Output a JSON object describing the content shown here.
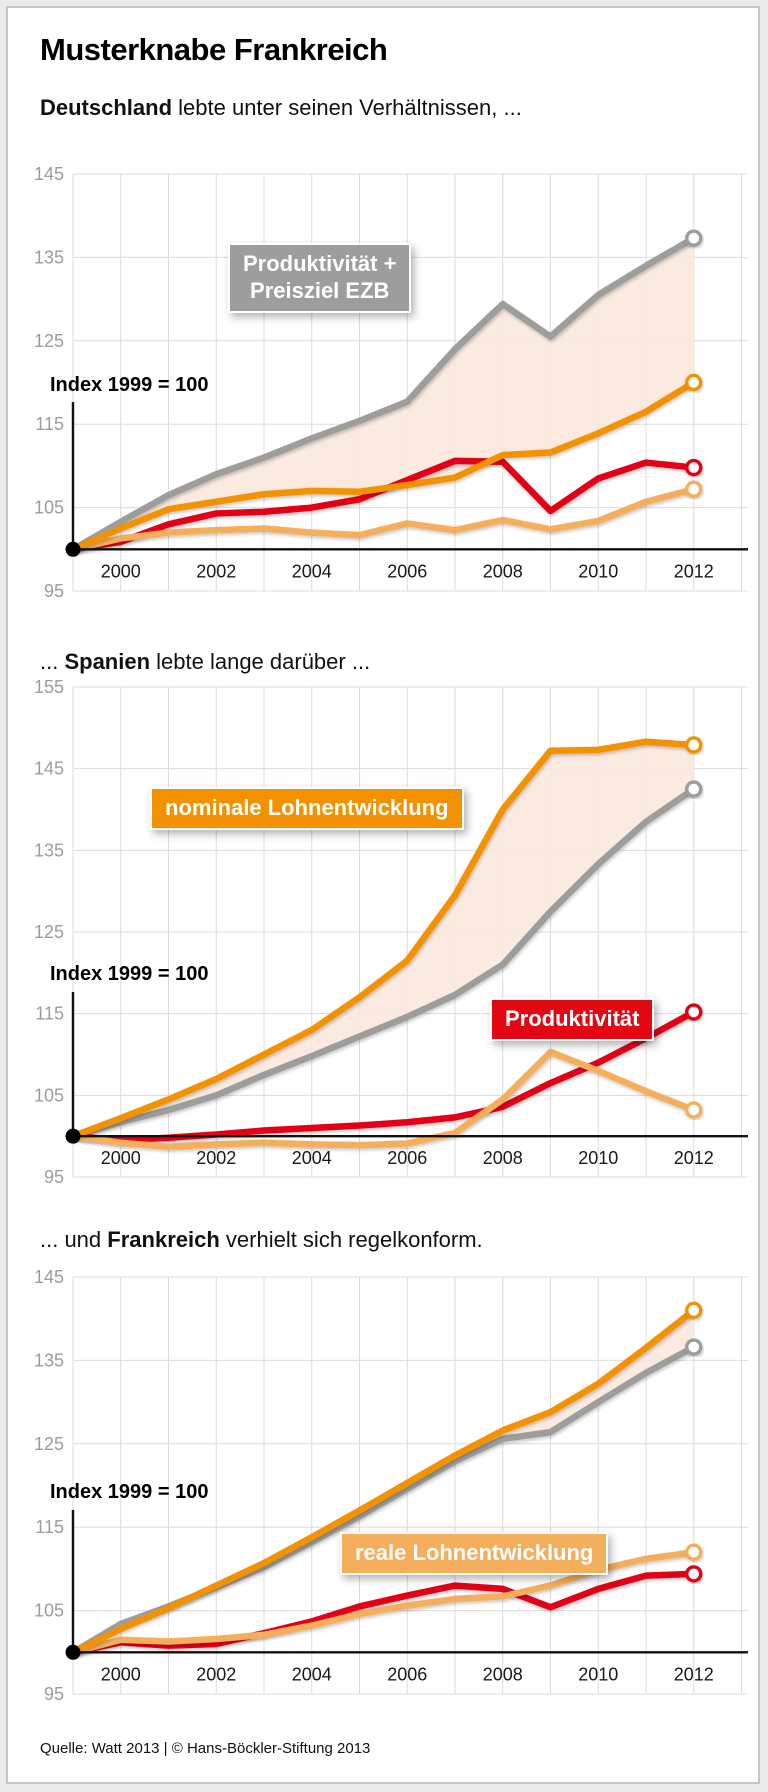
{
  "page": {
    "title": "Musterknabe Frankreich",
    "source_line": "Quelle: Watt 2013 | © Hans-Böckler-Stiftung 2013"
  },
  "colors": {
    "orange": "#f39200",
    "light_orange": "#f5ae5b",
    "red": "#e30613",
    "gray": "#9d9d9c",
    "band_fill": "#f9e8dc",
    "grid": "#dcdcdc",
    "ytick_label": "#9c9c9c",
    "xtick_label": "#1a1a1a",
    "axis": "#111111"
  },
  "chart_data": [
    {
      "type": "line",
      "country": "Deutschland",
      "title_parts": {
        "pre": "",
        "bold": "Deutschland",
        "post": " lebte unter seinen Verhältnissen, ..."
      },
      "axis_note": "Index 1999 = 100",
      "x": [
        1999,
        2000,
        2001,
        2002,
        2003,
        2004,
        2005,
        2006,
        2007,
        2008,
        2009,
        2010,
        2011,
        2012
      ],
      "xticks": [
        2000,
        2002,
        2004,
        2006,
        2008,
        2010,
        2012
      ],
      "yticks": [
        145,
        135,
        125,
        115,
        105,
        95
      ],
      "ylim": [
        95,
        145
      ],
      "baseline": 100,
      "grid": true,
      "label_boxes": [
        {
          "lines": [
            "Produktivität +",
            "Preisziel EZB"
          ],
          "color": "gray"
        }
      ],
      "band": {
        "upper": "Produktivität + Preisziel EZB",
        "lower": "nominale Lohnentwicklung"
      },
      "series": [
        {
          "name": "Produktivität + Preisziel EZB",
          "color": "gray",
          "values": [
            100,
            103.3,
            106.5,
            109,
            111,
            113.3,
            115.4,
            117.7,
            124,
            129.4,
            125.5,
            130.5,
            134,
            137.3
          ]
        },
        {
          "name": "Produktivität",
          "color": "red",
          "values": [
            100,
            100.9,
            103,
            104.3,
            104.5,
            105,
            106,
            108.3,
            110.6,
            110.5,
            104.6,
            108.5,
            110.4,
            109.8
          ]
        },
        {
          "name": "reale Lohnentwicklung",
          "color": "light_orange",
          "values": [
            100,
            101.3,
            102,
            102.3,
            102.5,
            102,
            101.7,
            103.1,
            102.3,
            103.5,
            102.4,
            103.4,
            105.7,
            107.2
          ]
        },
        {
          "name": "nominale Lohnentwicklung",
          "color": "orange",
          "values": [
            100,
            102.5,
            104.8,
            105.7,
            106.6,
            107,
            106.9,
            107.7,
            108.6,
            111.3,
            111.6,
            113.9,
            116.5,
            120
          ]
        }
      ]
    },
    {
      "type": "line",
      "country": "Spanien",
      "title_parts": {
        "pre": "... ",
        "bold": "Spanien",
        "post": " lebte lange darüber ..."
      },
      "axis_note": "Index 1999 = 100",
      "x": [
        1999,
        2000,
        2001,
        2002,
        2003,
        2004,
        2005,
        2006,
        2007,
        2008,
        2009,
        2010,
        2011,
        2012
      ],
      "xticks": [
        2000,
        2002,
        2004,
        2006,
        2008,
        2010,
        2012
      ],
      "yticks": [
        155,
        145,
        135,
        125,
        115,
        105,
        95
      ],
      "ylim": [
        95,
        155
      ],
      "baseline": 100,
      "grid": true,
      "label_boxes": [
        {
          "lines": [
            "nominale Lohnentwicklung"
          ],
          "color": "orange"
        },
        {
          "lines": [
            "Produktivität"
          ],
          "color": "red"
        }
      ],
      "band": {
        "upper": "nominale Lohnentwicklung",
        "lower": "Produktivität + Preisziel EZB"
      },
      "series": [
        {
          "name": "Produktivität + Preisziel EZB",
          "color": "gray",
          "values": [
            100,
            101.7,
            103.2,
            105,
            107.5,
            109.8,
            112.2,
            114.6,
            117.3,
            121,
            127.5,
            133.3,
            138.5,
            142.5
          ]
        },
        {
          "name": "Produktivität",
          "color": "red",
          "values": [
            100,
            99.5,
            99.8,
            100.2,
            100.7,
            101,
            101.3,
            101.7,
            102.3,
            103.6,
            106.5,
            109,
            112,
            115.2
          ]
        },
        {
          "name": "reale Lohnentwicklung",
          "color": "light_orange",
          "values": [
            100,
            99.2,
            98.7,
            99,
            99.2,
            99,
            98.9,
            99.1,
            100.4,
            104.5,
            110.3,
            108,
            105.5,
            103.2
          ]
        },
        {
          "name": "nominale Lohnentwicklung",
          "color": "orange",
          "values": [
            100,
            102.2,
            104.5,
            107,
            110,
            113,
            117,
            121.5,
            129.5,
            140,
            147.2,
            147.3,
            148.3,
            147.9
          ]
        }
      ]
    },
    {
      "type": "line",
      "country": "Frankreich",
      "title_parts": {
        "pre": "... und ",
        "bold": "Frankreich",
        "post": " verhielt sich regelkonform."
      },
      "axis_note": "Index 1999 = 100",
      "x": [
        1999,
        2000,
        2001,
        2002,
        2003,
        2004,
        2005,
        2006,
        2007,
        2008,
        2009,
        2010,
        2011,
        2012
      ],
      "xticks": [
        2000,
        2002,
        2004,
        2006,
        2008,
        2010,
        2012
      ],
      "yticks": [
        145,
        135,
        125,
        115,
        105,
        95
      ],
      "ylim": [
        95,
        145
      ],
      "baseline": 100,
      "grid": true,
      "label_boxes": [
        {
          "lines": [
            "reale Lohnentwicklung"
          ],
          "color": "light_orange"
        }
      ],
      "band": {
        "upper": "nominale Lohnentwicklung",
        "lower": "Produktivität + Preisziel EZB"
      },
      "series": [
        {
          "name": "Produktivität + Preisziel EZB",
          "color": "gray",
          "values": [
            100,
            103.4,
            105.5,
            107.8,
            110.2,
            113.2,
            116.3,
            119.6,
            122.9,
            125.6,
            126.4,
            130,
            133.5,
            136.6
          ]
        },
        {
          "name": "Produktivität",
          "color": "red",
          "values": [
            100,
            101.2,
            100.8,
            101,
            102.3,
            103.7,
            105.5,
            106.8,
            108,
            107.6,
            105.4,
            107.6,
            109.2,
            109.4
          ]
        },
        {
          "name": "reale Lohnentwicklung",
          "color": "light_orange",
          "values": [
            100,
            101.5,
            101.3,
            101.6,
            102.1,
            103.2,
            104.6,
            105.6,
            106.4,
            106.7,
            108,
            109.9,
            111.2,
            112
          ]
        },
        {
          "name": "nominale Lohnentwicklung",
          "color": "orange",
          "values": [
            100,
            102.8,
            105.3,
            108,
            110.7,
            113.8,
            117,
            120.3,
            123.6,
            126.6,
            128.8,
            132.2,
            136.5,
            141
          ]
        }
      ]
    }
  ]
}
